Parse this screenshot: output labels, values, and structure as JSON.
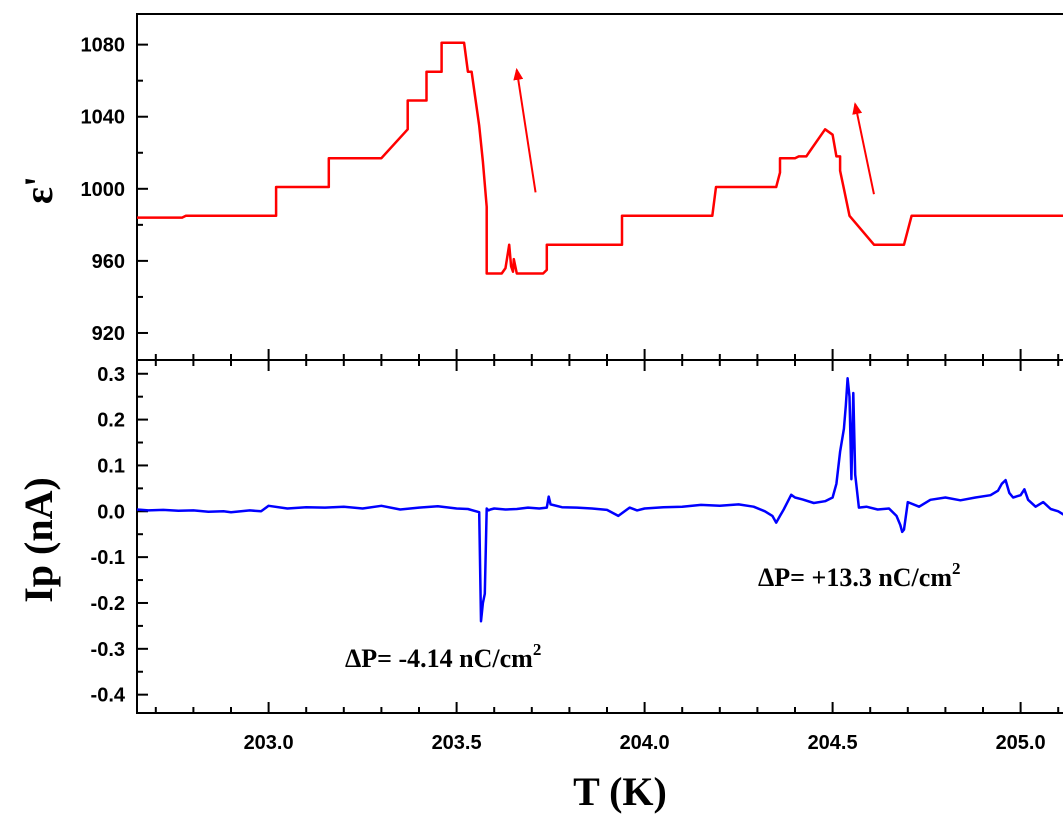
{
  "chart_data": [
    {
      "type": "line",
      "ylabel": "ε'",
      "ylim": [
        905,
        1097
      ],
      "xlim": [
        202.65,
        205.15
      ],
      "yticks": [
        920,
        960,
        1000,
        1040,
        1080
      ],
      "color": "#ff0000",
      "series": [
        {
          "x": [
            202.65,
            202.77,
            202.78,
            203.02,
            203.02,
            203.16,
            203.16,
            203.28,
            203.3,
            203.37,
            203.37,
            203.42,
            203.42,
            203.46,
            203.46,
            203.5,
            203.52,
            203.53,
            203.54,
            203.55,
            203.56,
            203.57,
            203.58,
            203.58,
            203.62,
            203.63,
            203.64,
            203.645,
            203.65,
            203.652,
            203.66,
            203.68,
            203.7,
            203.73,
            203.74,
            203.74,
            203.85,
            203.94,
            203.94,
            204.18,
            204.19,
            204.35,
            204.36,
            204.36,
            204.4,
            204.41,
            204.42,
            204.43,
            204.44,
            204.48,
            204.48,
            204.5,
            204.51,
            204.52,
            204.52,
            204.53,
            204.545,
            204.61,
            204.69,
            204.69,
            204.71,
            205.12,
            205.15
          ],
          "y": [
            984,
            984,
            985,
            985,
            1001,
            1001,
            1017,
            1017,
            1017,
            1033,
            1049,
            1049,
            1065,
            1065,
            1081,
            1081,
            1081,
            1065,
            1065,
            1050,
            1035,
            1015,
            990,
            953,
            953,
            956,
            969,
            957,
            954,
            961,
            953,
            953,
            953,
            953,
            955,
            969,
            969,
            969,
            985,
            985,
            1001,
            1001,
            1009,
            1017,
            1017,
            1018,
            1018,
            1018,
            1021,
            1033,
            1033,
            1030,
            1018,
            1018,
            1010,
            1000,
            985,
            969,
            969,
            969,
            985,
            985,
            1001
          ]
        }
      ],
      "arrows": [
        {
          "from": [
            203.71,
            998
          ],
          "to": [
            203.66,
            1066
          ]
        },
        {
          "from": [
            204.61,
            997
          ],
          "to": [
            204.56,
            1047
          ]
        }
      ]
    },
    {
      "type": "line",
      "xlabel": "T (K)",
      "ylabel": "Ip (nA)",
      "ylim": [
        -0.44,
        0.33
      ],
      "xlim": [
        202.65,
        205.15
      ],
      "xticks": [
        "203.0",
        "203.5",
        "204.0",
        "204.5",
        "205.0"
      ],
      "yticks": [
        "0.3",
        "0.2",
        "0.1",
        "0.0",
        "-0.1",
        "-0.2",
        "-0.3",
        "-0.4"
      ],
      "color": "#0000ff",
      "series": [
        {
          "x": [
            202.65,
            202.68,
            202.72,
            202.76,
            202.8,
            202.84,
            202.88,
            202.9,
            202.95,
            202.98,
            203.0,
            203.05,
            203.1,
            203.15,
            203.2,
            203.25,
            203.3,
            203.35,
            203.4,
            203.45,
            203.5,
            203.53,
            203.56,
            203.565,
            203.57,
            203.575,
            203.58,
            203.585,
            203.59,
            203.6,
            203.63,
            203.66,
            203.69,
            203.72,
            203.74,
            203.745,
            203.75,
            203.78,
            203.82,
            203.86,
            203.9,
            203.93,
            203.96,
            203.98,
            204.0,
            204.05,
            204.1,
            204.15,
            204.2,
            204.25,
            204.29,
            204.32,
            204.34,
            204.35,
            204.36,
            204.37,
            204.38,
            204.39,
            204.4,
            204.42,
            204.45,
            204.48,
            204.5,
            204.51,
            204.52,
            204.53,
            204.535,
            204.54,
            204.545,
            204.55,
            204.555,
            204.56,
            204.57,
            204.59,
            204.62,
            204.65,
            204.67,
            204.68,
            204.685,
            204.69,
            204.7,
            204.73,
            204.76,
            204.8,
            204.84,
            204.88,
            204.92,
            204.94,
            204.95,
            204.96,
            204.97,
            204.98,
            205.0,
            205.01,
            205.02,
            205.04,
            205.06,
            205.08,
            205.1,
            205.12,
            205.15
          ],
          "y": [
            0.004,
            0.002,
            0.003,
            0.001,
            0.002,
            -0.001,
            0.0,
            -0.002,
            0.002,
            0.0,
            0.012,
            0.006,
            0.009,
            0.008,
            0.01,
            0.006,
            0.012,
            0.004,
            0.008,
            0.011,
            0.006,
            0.005,
            -0.002,
            -0.24,
            -0.2,
            -0.18,
            0.006,
            0.002,
            0.004,
            0.006,
            0.004,
            0.005,
            0.008,
            0.006,
            0.008,
            0.032,
            0.015,
            0.009,
            0.008,
            0.006,
            0.003,
            -0.01,
            0.008,
            0.002,
            0.006,
            0.009,
            0.01,
            0.014,
            0.012,
            0.015,
            0.01,
            0.0,
            -0.01,
            -0.025,
            -0.01,
            0.004,
            0.02,
            0.036,
            0.03,
            0.026,
            0.018,
            0.022,
            0.03,
            0.06,
            0.13,
            0.18,
            0.23,
            0.29,
            0.25,
            0.07,
            0.258,
            0.08,
            0.008,
            0.01,
            0.004,
            0.006,
            -0.01,
            -0.03,
            -0.045,
            -0.04,
            0.02,
            0.01,
            0.025,
            0.03,
            0.024,
            0.03,
            0.035,
            0.045,
            0.06,
            0.068,
            0.04,
            0.03,
            0.035,
            0.048,
            0.025,
            0.01,
            0.02,
            0.005,
            0.0,
            -0.01,
            -0.015
          ]
        }
      ],
      "annotations": [
        {
          "text": "ΔP= -4.14 nC/cm",
          "sup": "2"
        },
        {
          "text": "ΔP= +13.3 nC/cm",
          "sup": "2"
        }
      ]
    }
  ]
}
